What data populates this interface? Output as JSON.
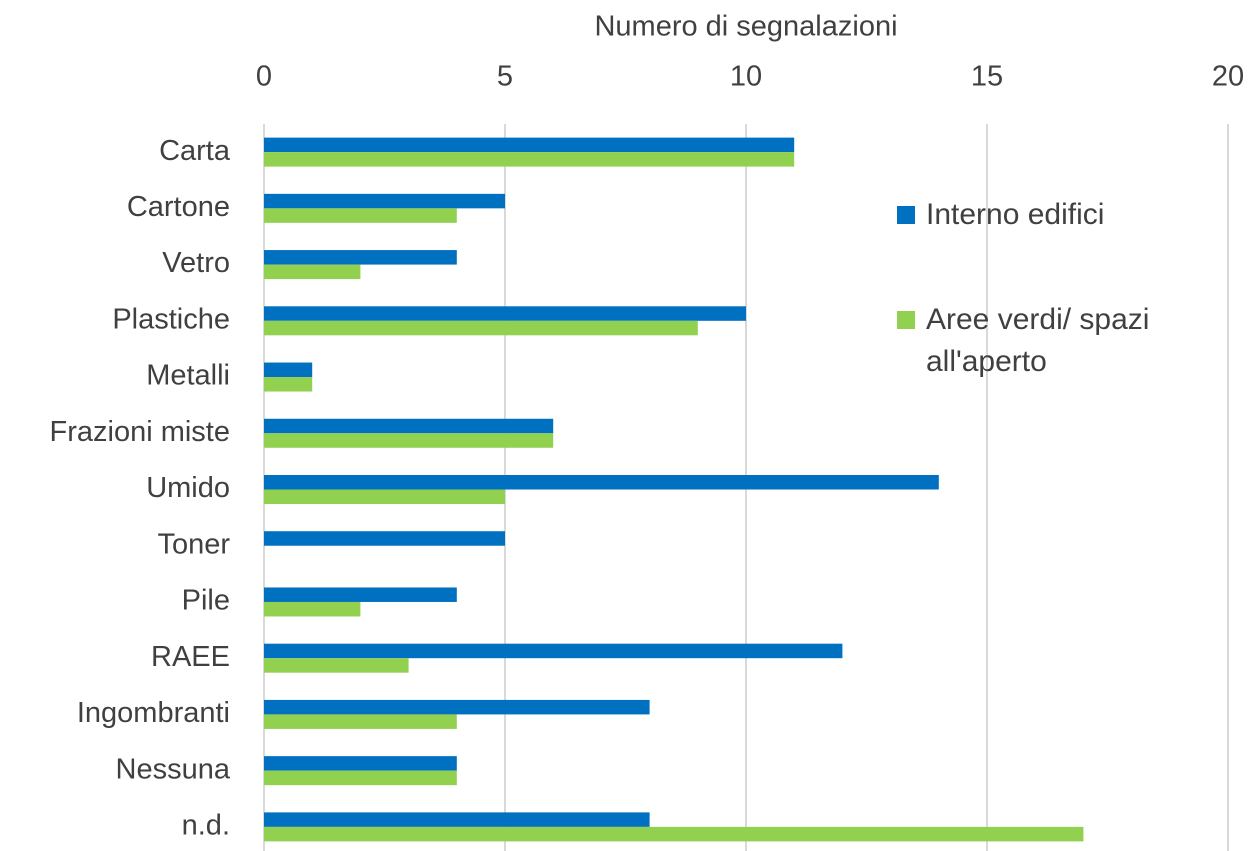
{
  "chart_data": {
    "type": "hbar",
    "x_label": "Numero di segnalazioni",
    "categories": [
      "Carta",
      "Cartone",
      "Vetro",
      "Plastiche",
      "Metalli",
      "Frazioni miste",
      "Umido",
      "Toner",
      "Pile",
      "RAEE",
      "Ingombranti",
      "Nessuna",
      "n.d."
    ],
    "series": [
      {
        "name": "Interno edifici",
        "color": "#0070c0",
        "values": [
          11,
          5,
          4,
          10,
          1,
          6,
          14,
          5,
          4,
          12,
          8,
          4,
          8
        ]
      },
      {
        "name": "Aree verdi/ spazi all'aperto",
        "color": "#92d050",
        "values": [
          11,
          4,
          2,
          9,
          1,
          6,
          5,
          0,
          2,
          3,
          4,
          4,
          17
        ]
      }
    ],
    "xlim": [
      0,
      20
    ],
    "xticks": [
      0,
      5,
      10,
      15,
      20
    ],
    "grid": true
  }
}
